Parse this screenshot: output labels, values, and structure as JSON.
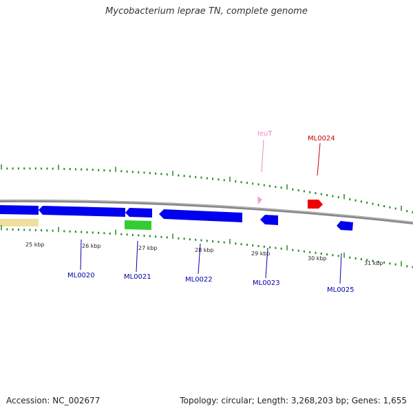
{
  "title": "Mycobacterium leprae TN, complete genome",
  "footer": {
    "accession": "Accession: NC_002677",
    "summary": "Topology: circular; Length: 3,268,203 bp; Genes: 1,655"
  },
  "colors": {
    "backbone": "#888888",
    "ticks": "#1f8a1f",
    "gene_blue": "#0000ee",
    "gene_red": "#ee0000",
    "gene_pink": "#f2a2d4",
    "gene_green": "#33cc33",
    "gene_tan": "#f0e0a0",
    "label_blue": "#0000aa",
    "label_red": "#cc0000",
    "label_pink": "#ee88bb"
  },
  "scale_labels": [
    "25 kbp",
    "26 kbp",
    "27 kbp",
    "28 kbp",
    "29 kbp",
    "30 kbp",
    "31 kbp"
  ],
  "gene_labels": [
    "ML0020",
    "ML0021",
    "ML0022",
    "leuT",
    "ML0023",
    "ML0024",
    "ML0025"
  ]
}
